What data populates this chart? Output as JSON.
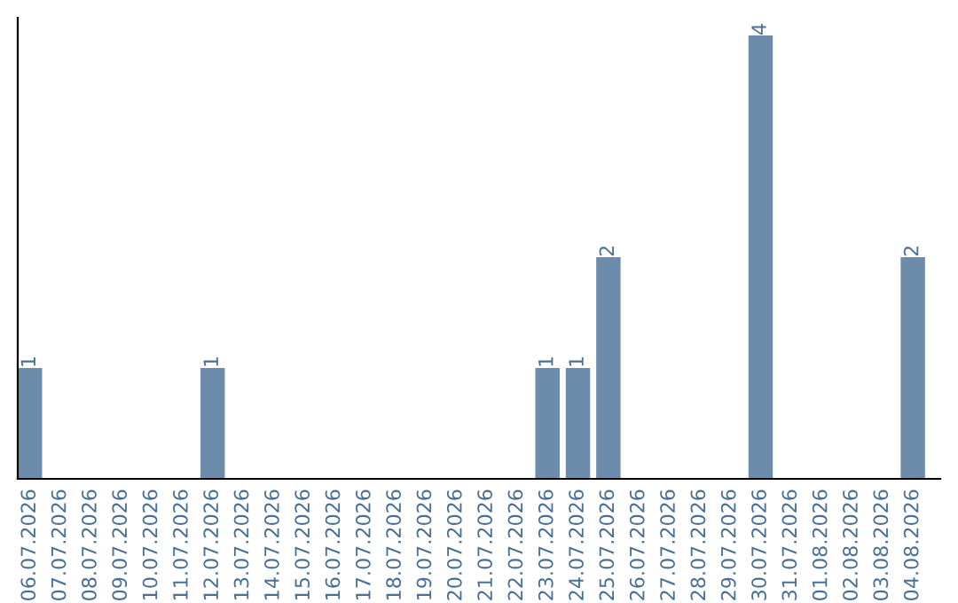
{
  "chart_data": {
    "type": "bar",
    "categories": [
      "06.07.2026",
      "07.07.2026",
      "08.07.2026",
      "09.07.2026",
      "10.07.2026",
      "11.07.2026",
      "12.07.2026",
      "13.07.2026",
      "14.07.2026",
      "15.07.2026",
      "16.07.2026",
      "17.07.2026",
      "18.07.2026",
      "19.07.2026",
      "20.07.2026",
      "21.07.2026",
      "22.07.2026",
      "23.07.2026",
      "24.07.2026",
      "25.07.2026",
      "26.07.2026",
      "27.07.2026",
      "28.07.2026",
      "29.07.2026",
      "30.07.2026",
      "31.07.2026",
      "01.08.2026",
      "02.08.2026",
      "03.08.2026",
      "04.08.2026"
    ],
    "values": [
      1,
      0,
      0,
      0,
      0,
      0,
      1,
      0,
      0,
      0,
      0,
      0,
      0,
      0,
      0,
      0,
      0,
      1,
      1,
      2,
      0,
      0,
      0,
      0,
      4,
      0,
      0,
      0,
      0,
      2
    ],
    "value_labels": [
      "1",
      null,
      null,
      null,
      null,
      null,
      "1",
      null,
      null,
      null,
      null,
      null,
      null,
      null,
      null,
      null,
      null,
      "1",
      "1",
      "2",
      null,
      null,
      null,
      null,
      "4",
      null,
      null,
      null,
      null,
      "2"
    ],
    "color": "#6d8cab",
    "tick_labels": "x",
    "grid": false,
    "legend": false
  }
}
